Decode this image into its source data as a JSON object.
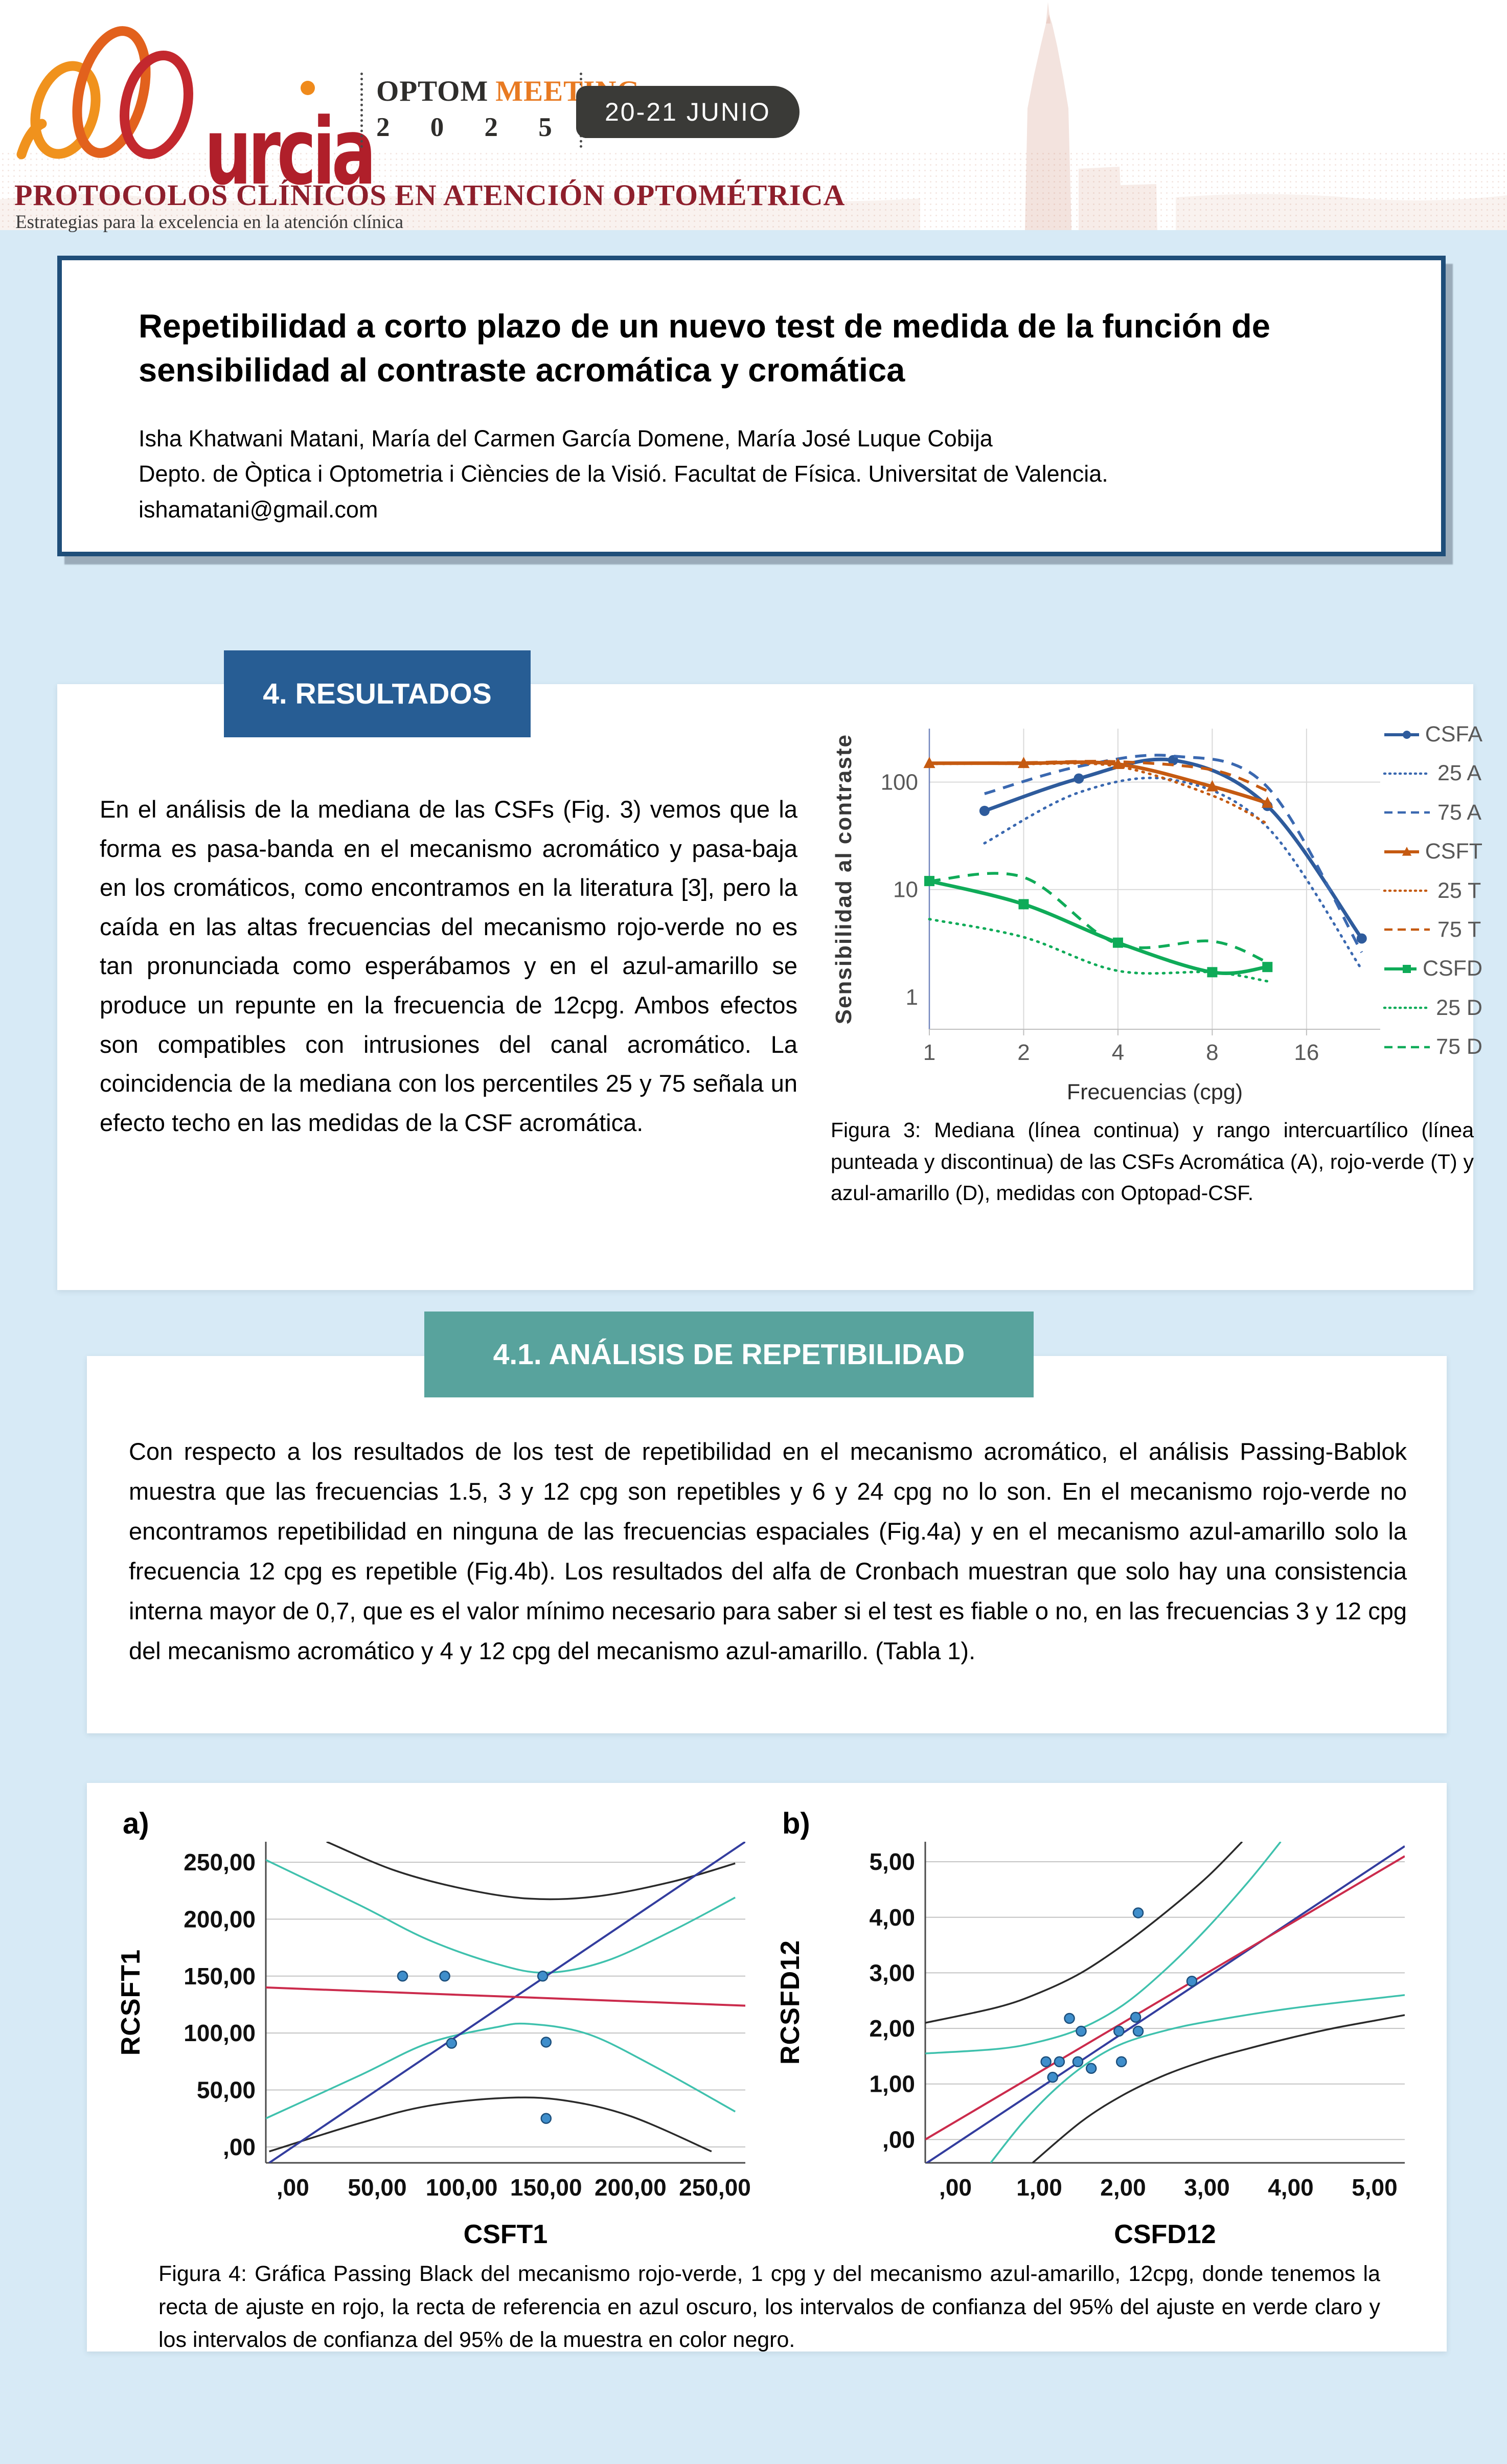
{
  "header": {
    "logo_text": "urcia",
    "event": {
      "brand_left": "OPTOM",
      "brand_right": "MEETING",
      "year": "2 0 2 5",
      "date_badge": "20-21 JUNIO"
    },
    "congress_title": "PROTOCOLOS CLÍNICOS EN ATENCIÓN OPTOMÉTRICA",
    "congress_subtitle": "Estrategias para la excelencia en la atención clínica"
  },
  "title_box": {
    "title": "Repetibilidad a corto plazo de un nuevo test de medida de la función de sensibilidad al contraste acromática y cromática",
    "authors": "Isha Khatwani Matani, María del Carmen García Domene, María José Luque Cobija",
    "affiliation": "Depto. de Òptica i Optometria i Ciències de la Visió. Facultat de Física. Universitat de Valencia.",
    "email": "ishamatani@gmail.com"
  },
  "sections": {
    "results": {
      "heading": "4. RESULTADOS",
      "body": "En el análisis de la mediana de las CSFs (Fig. 3) vemos que la forma es pasa-banda en el mecanismo acromático y pasa-baja en los cromáticos, como encontramos en la literatura [3], pero la caída en las altas frecuencias del mecanismo rojo-verde no es tan pronunciada como esperábamos y en el azul-amarillo se produce un repunte en la frecuencia de 12cpg. Ambos efectos son compatibles con intrusiones del canal acromático. La coincidencia de la mediana con los percentiles 25 y 75 señala un efecto techo en las medidas de la CSF acromática.",
      "figure_caption": "Figura 3: Mediana (línea continua) y rango intercuartílico (línea punteada y discontinua) de las CSFs Acromática (A), rojo-verde (T) y azul-amarillo (D), medidas con Optopad-CSF."
    },
    "repeatability": {
      "heading": "4.1. ANÁLISIS DE REPETIBILIDAD",
      "body": "Con respecto a los resultados de los test de repetibilidad en el mecanismo acromático, el análisis Passing-Bablok muestra que las frecuencias 1.5, 3 y 12 cpg son repetibles y 6 y 24 cpg no lo son. En el mecanismo rojo-verde no encontramos repetibilidad en ninguna de las frecuencias espaciales (Fig.4a) y en el mecanismo azul-amarillo solo la frecuencia 12 cpg es repetible (Fig.4b). Los resultados del alfa de Cronbach muestran que solo hay una consistencia interna mayor de 0,7, que es el valor mínimo necesario para saber si el test es fiable o no, en las frecuencias 3 y 12 cpg del mecanismo acromático y 4 y 12 cpg del mecanismo azul-amarillo. (Tabla 1)."
    }
  },
  "figure4": {
    "label_a": "a)",
    "label_b": "b)",
    "caption": "Figura 4: Gráfica Passing Black del mecanismo rojo-verde, 1 cpg y del mecanismo azul-amarillo, 12cpg, donde tenemos la recta de ajuste en rojo, la recta de referencia en azul oscuro, los intervalos de confianza del 95% del ajuste en verde claro y los intervalos de confianza del 95% de la muestra en color negro."
  },
  "colors": {
    "page_background": "#d7eaf6",
    "results_header": "#275d94",
    "repeatability_header": "#58a39d",
    "title_box_border": "#1f4e79",
    "congress_red": "#8e1f2c",
    "brand_orange": "#e87a22",
    "brand_red": "#b01f2a",
    "badge_dark": "#3a3a37"
  },
  "chart_data": [
    {
      "id": "fig3",
      "type": "line",
      "x_scale": "log2",
      "y_scale": "log10",
      "xlabel": "Frecuencias (cpg)",
      "ylabel": "Sensibilidad al contraste",
      "xlim": [
        1,
        27.5
      ],
      "ylim": [
        0.5,
        315
      ],
      "x_ticks": [
        1,
        2,
        4,
        8,
        16
      ],
      "y_ticks": [
        1,
        10,
        100
      ],
      "grid": true,
      "legend_position": "right",
      "series": [
        {
          "name": "CSFA",
          "color": "#2e5b9c",
          "style": "solid",
          "marker": "circle",
          "x": [
            1.5,
            3,
            6,
            12,
            24
          ],
          "y": [
            54,
            108,
            160,
            60,
            3.5
          ]
        },
        {
          "name": "25 A",
          "color": "#3a68b0",
          "style": "dotted",
          "marker": "none",
          "x": [
            1.5,
            3,
            6,
            12,
            24
          ],
          "y": [
            27,
            80,
            105,
            38,
            1.8
          ]
        },
        {
          "name": "75 A",
          "color": "#3a68b0",
          "style": "dashed",
          "marker": "none",
          "x": [
            1.5,
            3,
            6,
            12,
            24
          ],
          "y": [
            78,
            140,
            175,
            90,
            2.6
          ]
        },
        {
          "name": "CSFT",
          "color": "#c55a11",
          "style": "solid",
          "marker": "triangle",
          "x": [
            1,
            2,
            4,
            8,
            12
          ],
          "y": [
            150,
            150,
            147,
            91,
            64
          ]
        },
        {
          "name": "25 T",
          "color": "#c55a11",
          "style": "dotted",
          "marker": "none",
          "x": [
            1,
            2,
            4,
            8,
            12
          ],
          "y": [
            148,
            148,
            140,
            75,
            41
          ]
        },
        {
          "name": "75 T",
          "color": "#c55a11",
          "style": "dashed",
          "marker": "none",
          "x": [
            1,
            2,
            4,
            8,
            12
          ],
          "y": [
            150,
            152,
            155,
            130,
            83
          ]
        },
        {
          "name": "CSFD",
          "color": "#0fab58",
          "style": "solid",
          "marker": "square",
          "x": [
            1,
            2,
            4,
            8,
            12
          ],
          "y": [
            12,
            7.3,
            3.2,
            1.7,
            1.9
          ]
        },
        {
          "name": "25 D",
          "color": "#0fab58",
          "style": "dotted",
          "marker": "none",
          "x": [
            1,
            2,
            4,
            8,
            12
          ],
          "y": [
            5.3,
            3.6,
            1.75,
            1.7,
            1.4
          ]
        },
        {
          "name": "75 D",
          "color": "#0fab58",
          "style": "dashed",
          "marker": "none",
          "x": [
            1,
            2,
            4,
            8,
            12
          ],
          "y": [
            12,
            13,
            3.1,
            3.3,
            2.1
          ]
        }
      ]
    },
    {
      "id": "fig4a",
      "type": "scatter",
      "xlabel": "CSFT1",
      "ylabel": "RCSFT1",
      "xlim": [
        -16,
        268
      ],
      "ylim": [
        -14,
        268
      ],
      "ticks": {
        "values": [
          0,
          50,
          100,
          150,
          200,
          250
        ],
        "labels": [
          ",00",
          "50,00",
          "100,00",
          "150,00",
          "200,00",
          "250,00"
        ]
      },
      "points": [
        [
          65,
          150
        ],
        [
          90,
          150
        ],
        [
          148,
          150
        ],
        [
          94,
          91
        ],
        [
          150,
          92
        ],
        [
          150,
          25
        ]
      ],
      "lines": [
        {
          "name": "reference",
          "color": "#333d9e",
          "points": [
            [
              -14,
              -14
            ],
            [
              268,
              268
            ]
          ]
        },
        {
          "name": "fit",
          "color": "#cb2b4c",
          "points": [
            [
              -16,
              140
            ],
            [
              268,
              124
            ]
          ]
        }
      ],
      "curves": [
        {
          "name": "ci-sample-upper",
          "color": "#2a2a2a",
          "points": [
            [
              20,
              268
            ],
            [
              60,
              243
            ],
            [
              100,
              227
            ],
            [
              140,
              218
            ],
            [
              180,
              220
            ],
            [
              225,
              233
            ],
            [
              262,
              249
            ]
          ]
        },
        {
          "name": "ci-sample-lower",
          "color": "#2a2a2a",
          "points": [
            [
              -14,
              -4
            ],
            [
              40,
              21
            ],
            [
              80,
              36
            ],
            [
              125,
              43
            ],
            [
              160,
              41
            ],
            [
              200,
              27
            ],
            [
              248,
              -4
            ]
          ]
        },
        {
          "name": "ci-fit-upper",
          "color": "#3fc1ad",
          "points": [
            [
              -16,
              252
            ],
            [
              40,
              212
            ],
            [
              80,
              182
            ],
            [
              120,
              161
            ],
            [
              150,
              153
            ],
            [
              185,
              163
            ],
            [
              225,
              190
            ],
            [
              262,
              219
            ]
          ]
        },
        {
          "name": "ci-fit-lower",
          "color": "#3fc1ad",
          "points": [
            [
              -16,
              25
            ],
            [
              40,
              63
            ],
            [
              80,
              91
            ],
            [
              120,
              105
            ],
            [
              140,
              108
            ],
            [
              175,
              99
            ],
            [
              215,
              70
            ],
            [
              262,
              31
            ]
          ]
        }
      ]
    },
    {
      "id": "fig4b",
      "type": "scatter",
      "xlabel": "CSFD12",
      "ylabel": "RCSFD12",
      "xlim": [
        -0.36,
        5.36
      ],
      "ylim": [
        -0.42,
        5.36
      ],
      "ticks": {
        "values": [
          0,
          1,
          2,
          3,
          4,
          5
        ],
        "labels": [
          ",00",
          "1,00",
          "2,00",
          "3,00",
          "4,00",
          "5,00"
        ]
      },
      "points": [
        [
          1.08,
          1.4
        ],
        [
          1.16,
          1.12
        ],
        [
          1.24,
          1.4
        ],
        [
          1.36,
          2.18
        ],
        [
          1.46,
          1.4
        ],
        [
          1.5,
          1.95
        ],
        [
          1.62,
          1.28
        ],
        [
          1.95,
          1.95
        ],
        [
          1.98,
          1.4
        ],
        [
          2.15,
          2.2
        ],
        [
          2.18,
          1.95
        ],
        [
          2.18,
          4.08
        ],
        [
          2.82,
          2.85
        ]
      ],
      "lines": [
        {
          "name": "reference",
          "color": "#333d9e",
          "points": [
            [
              -0.36,
              -0.44
            ],
            [
              5.36,
              5.28
            ]
          ]
        },
        {
          "name": "fit",
          "color": "#cb2b4c",
          "points": [
            [
              -0.36,
              0.0
            ],
            [
              5.36,
              5.1
            ]
          ]
        }
      ],
      "curves": [
        {
          "name": "ci-sample-upper",
          "color": "#2a2a2a",
          "points": [
            [
              -0.36,
              2.1
            ],
            [
              0.5,
              2.38
            ],
            [
              1.0,
              2.64
            ],
            [
              1.5,
              3.0
            ],
            [
              2.0,
              3.5
            ],
            [
              2.5,
              4.08
            ],
            [
              3.0,
              4.72
            ],
            [
              3.42,
              5.36
            ]
          ]
        },
        {
          "name": "ci-sample-lower",
          "color": "#2a2a2a",
          "points": [
            [
              0.92,
              -0.42
            ],
            [
              1.5,
              0.32
            ],
            [
              2.0,
              0.8
            ],
            [
              2.5,
              1.16
            ],
            [
              3.0,
              1.43
            ],
            [
              3.5,
              1.64
            ],
            [
              4.0,
              1.83
            ],
            [
              4.5,
              2.0
            ],
            [
              5.0,
              2.14
            ],
            [
              5.36,
              2.24
            ]
          ]
        },
        {
          "name": "ci-fit-upper",
          "color": "#3fc1ad",
          "points": [
            [
              -0.36,
              1.55
            ],
            [
              0.5,
              1.63
            ],
            [
              1.0,
              1.76
            ],
            [
              1.5,
              2.0
            ],
            [
              2.0,
              2.42
            ],
            [
              2.5,
              3.05
            ],
            [
              3.0,
              3.8
            ],
            [
              3.5,
              4.65
            ],
            [
              3.88,
              5.36
            ]
          ]
        },
        {
          "name": "ci-fit-lower",
          "color": "#3fc1ad",
          "points": [
            [
              0.42,
              -0.42
            ],
            [
              0.8,
              0.3
            ],
            [
              1.2,
              0.92
            ],
            [
              1.6,
              1.4
            ],
            [
              2.0,
              1.73
            ],
            [
              2.5,
              1.96
            ],
            [
              3.0,
              2.12
            ],
            [
              4.0,
              2.36
            ],
            [
              5.36,
              2.6
            ]
          ]
        }
      ]
    }
  ]
}
